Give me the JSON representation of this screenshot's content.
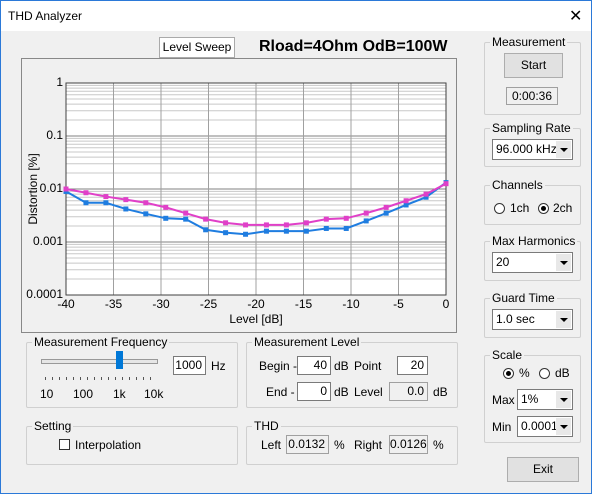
{
  "window": {
    "title": "THD Analyzer",
    "close": "✕"
  },
  "tab": "Level Sweep",
  "heading": "Rload=4Ohm OdB=100W",
  "chart_data": {
    "type": "line",
    "x_label": "Level [dB]",
    "y_label": "Distortion [%]",
    "x": [
      -40,
      -37.9,
      -35.8,
      -33.7,
      -31.6,
      -29.5,
      -27.4,
      -25.3,
      -23.2,
      -21.1,
      -18.9,
      -16.8,
      -14.7,
      -12.6,
      -10.5,
      -8.4,
      -6.3,
      -4.2,
      -2.1,
      0
    ],
    "series": [
      {
        "color": "#1f7de0",
        "values": [
          0.009,
          0.0055,
          0.0055,
          0.0042,
          0.0034,
          0.0028,
          0.0027,
          0.0017,
          0.0015,
          0.0014,
          0.0016,
          0.0016,
          0.0016,
          0.0018,
          0.0018,
          0.0025,
          0.0035,
          0.005,
          0.007,
          0.0132
        ]
      },
      {
        "color": "#e040c8",
        "values": [
          0.01,
          0.0085,
          0.0072,
          0.0063,
          0.0055,
          0.0045,
          0.0035,
          0.0027,
          0.0023,
          0.0021,
          0.0021,
          0.0021,
          0.0023,
          0.0027,
          0.0028,
          0.0035,
          0.0045,
          0.006,
          0.008,
          0.0126
        ]
      }
    ],
    "xlim": [
      -40,
      0
    ],
    "xticks": [
      -40,
      -35,
      -30,
      -25,
      -20,
      -15,
      -10,
      -5,
      0
    ],
    "ylim": [
      0.0001,
      1
    ],
    "yticks": [
      0.0001,
      0.001,
      0.01,
      0.1,
      1
    ],
    "log_y": true,
    "grid": true
  },
  "measurement_frequency": {
    "title": "Measurement Frequency",
    "value": "1000",
    "unit": "Hz",
    "scale": [
      "10",
      "100",
      "1k",
      "10k"
    ]
  },
  "measurement_level": {
    "title": "Measurement Level",
    "begin_label": "Begin -",
    "begin": "40",
    "begin_unit": "dB",
    "point_label": "Point",
    "point": "20",
    "end_label": "End -",
    "end": "0",
    "end_unit": "dB",
    "level_label": "Level",
    "level": "0.0",
    "level_unit": "dB"
  },
  "setting": {
    "title": "Setting",
    "interpolation": "Interpolation"
  },
  "thd": {
    "title": "THD",
    "left_label": "Left",
    "left": "0.0132",
    "left_unit": "%",
    "right_label": "Right",
    "right": "0.0126",
    "right_unit": "%"
  },
  "measurement": {
    "title": "Measurement",
    "start": "Start",
    "time": "0:00:36"
  },
  "sampling_rate": {
    "title": "Sampling Rate",
    "value": "96.000 kHz"
  },
  "channels": {
    "title": "Channels",
    "options": [
      "1ch",
      "2ch"
    ]
  },
  "max_harmonics": {
    "title": "Max Harmonics",
    "value": "20"
  },
  "guard_time": {
    "title": "Guard Time",
    "value": "1.0 sec"
  },
  "scale": {
    "title": "Scale",
    "options": [
      "%",
      "dB"
    ],
    "max_label": "Max",
    "max": "1%",
    "min_label": "Min",
    "min": "0.0001"
  },
  "exit": "Exit"
}
